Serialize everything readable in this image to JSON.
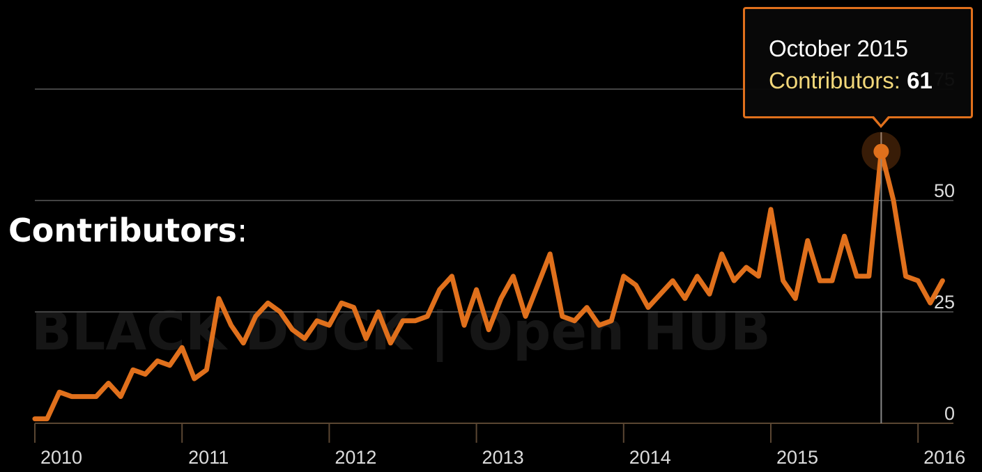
{
  "heading": {
    "text": "Contributors",
    "colon": ":"
  },
  "watermark": {
    "text": "BLACK DUCK | Open HUB"
  },
  "tooltip": {
    "date": "October 2015",
    "metric_label": "Contributors:",
    "metric_value": "61"
  },
  "colors": {
    "line": "#e0701c",
    "grid": "#444444",
    "axis": "#5a4632",
    "tick_text": "#dddddd",
    "background": "#000000"
  },
  "chart_data": {
    "type": "line",
    "title": "Contributors",
    "xlabel": "",
    "ylabel": "",
    "x_tick_labels": [
      "2010",
      "2011",
      "2012",
      "2013",
      "2014",
      "2015",
      "2016"
    ],
    "y_tick_labels": [
      "0",
      "25",
      "50",
      "75"
    ],
    "ylim": [
      0,
      75
    ],
    "grid": true,
    "x_start": "2010-01",
    "x_end": "2016-03",
    "highlight": {
      "month": "2015-10",
      "value": 61
    },
    "series": [
      {
        "name": "Contributors",
        "values": [
          1,
          1,
          7,
          6,
          6,
          6,
          9,
          6,
          12,
          11,
          14,
          13,
          17,
          10,
          12,
          28,
          22,
          18,
          24,
          27,
          25,
          21,
          19,
          23,
          22,
          27,
          26,
          19,
          25,
          18,
          23,
          23,
          24,
          30,
          33,
          22,
          30,
          21,
          28,
          33,
          24,
          31,
          38,
          24,
          23,
          26,
          22,
          23,
          33,
          31,
          26,
          29,
          32,
          28,
          33,
          29,
          38,
          32,
          35,
          33,
          48,
          32,
          28,
          41,
          32,
          32,
          42,
          33,
          33,
          61,
          50,
          33,
          32,
          27,
          32
        ]
      }
    ]
  }
}
